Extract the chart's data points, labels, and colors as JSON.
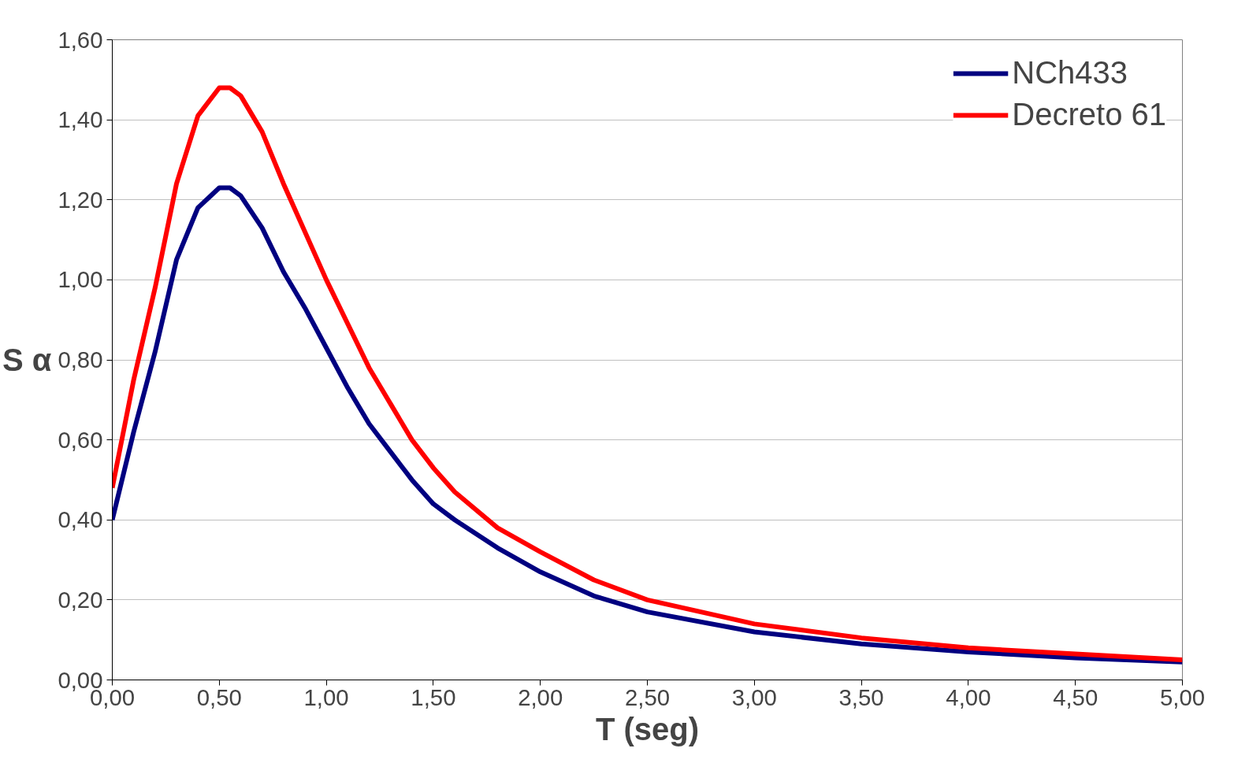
{
  "chart_data": {
    "type": "line",
    "xlabel": "T (seg)",
    "ylabel": "S α",
    "x": [
      0,
      0.1,
      0.2,
      0.3,
      0.4,
      0.5,
      0.55,
      0.6,
      0.7,
      0.8,
      0.9,
      1.0,
      1.1,
      1.2,
      1.3,
      1.4,
      1.5,
      1.6,
      1.8,
      2.0,
      2.25,
      2.5,
      3.0,
      3.5,
      4.0,
      4.5,
      5.0
    ],
    "series": [
      {
        "name": "NCh433",
        "color": "#000080",
        "values": [
          0.4,
          0.62,
          0.82,
          1.05,
          1.18,
          1.23,
          1.23,
          1.21,
          1.13,
          1.02,
          0.93,
          0.83,
          0.73,
          0.64,
          0.57,
          0.5,
          0.44,
          0.4,
          0.33,
          0.27,
          0.21,
          0.17,
          0.12,
          0.09,
          0.07,
          0.055,
          0.045
        ]
      },
      {
        "name": "Decreto 61",
        "color": "#ff0000",
        "values": [
          0.48,
          0.75,
          0.98,
          1.24,
          1.41,
          1.48,
          1.48,
          1.46,
          1.37,
          1.24,
          1.12,
          1.0,
          0.89,
          0.78,
          0.69,
          0.6,
          0.53,
          0.47,
          0.38,
          0.32,
          0.25,
          0.2,
          0.14,
          0.105,
          0.08,
          0.065,
          0.05
        ]
      }
    ],
    "xlim": [
      0,
      5
    ],
    "ylim": [
      0,
      1.6
    ],
    "xticks": [
      {
        "value": 0,
        "label": "0,00"
      },
      {
        "value": 0.5,
        "label": "0,50"
      },
      {
        "value": 1,
        "label": "1,00"
      },
      {
        "value": 1.5,
        "label": "1,50"
      },
      {
        "value": 2,
        "label": "2,00"
      },
      {
        "value": 2.5,
        "label": "2,50"
      },
      {
        "value": 3,
        "label": "3,00"
      },
      {
        "value": 3.5,
        "label": "3,50"
      },
      {
        "value": 4,
        "label": "4,00"
      },
      {
        "value": 4.5,
        "label": "4,50"
      },
      {
        "value": 5,
        "label": "5,00"
      }
    ],
    "yticks": [
      {
        "value": 0,
        "label": "0,00"
      },
      {
        "value": 0.2,
        "label": "0,20"
      },
      {
        "value": 0.4,
        "label": "0,40"
      },
      {
        "value": 0.6,
        "label": "0,60"
      },
      {
        "value": 0.8,
        "label": "0,80"
      },
      {
        "value": 1.0,
        "label": "1,00"
      },
      {
        "value": 1.2,
        "label": "1,20"
      },
      {
        "value": 1.4,
        "label": "1,40"
      },
      {
        "value": 1.6,
        "label": "1,60"
      }
    ],
    "grid": "y",
    "legend": "top right",
    "marker": "none",
    "line_style": "solid"
  }
}
